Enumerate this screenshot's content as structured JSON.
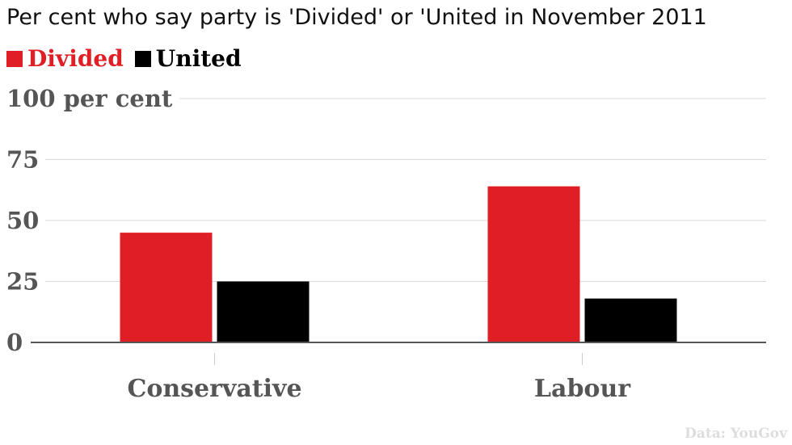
{
  "title": "Per cent who say party is 'Divided' or 'United in November 2011",
  "source": "Data: YouGov",
  "colors": {
    "divided": "#e01e25",
    "united": "#000000",
    "grid": "#d9d9d9",
    "axis": "#555555",
    "text": "#555555"
  },
  "legend": [
    {
      "label": "Divided",
      "color": "#e01e25"
    },
    {
      "label": "United",
      "color": "#000000"
    }
  ],
  "chart_data": {
    "type": "bar",
    "title": "Per cent who say party is 'Divided' or 'United in November 2011",
    "categories": [
      "Conservative",
      "Labour"
    ],
    "series": [
      {
        "name": "Divided",
        "values": [
          45,
          64
        ]
      },
      {
        "name": "United",
        "values": [
          25,
          18
        ]
      }
    ],
    "yticks": [
      "0",
      "25",
      "50",
      "75",
      "100 per cent"
    ],
    "ylim": [
      0,
      100
    ],
    "grid": true,
    "legend_position": "top-left"
  }
}
